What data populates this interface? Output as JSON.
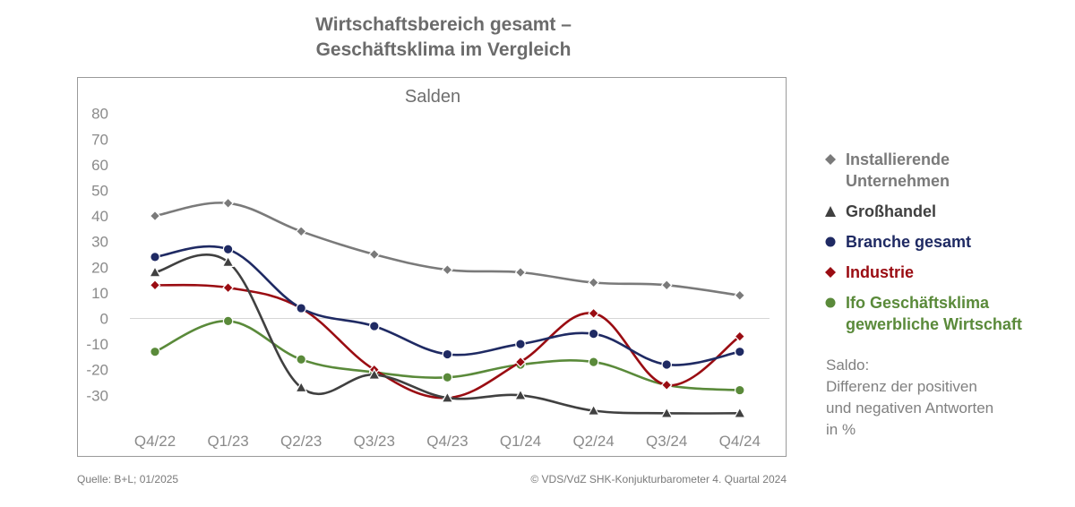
{
  "title_lines": [
    "Wirtschaftsbereich gesamt –",
    "Geschäftsklima im Vergleich"
  ],
  "legend": [
    {
      "label": "Installierende\nUnternehmen",
      "color": "#7a7a7a",
      "marker": "diamond"
    },
    {
      "label": "Großhandel",
      "color": "#404040",
      "marker": "triangle"
    },
    {
      "label": "Branche gesamt",
      "color": "#1f2a63",
      "marker": "circle"
    },
    {
      "label": "Industrie",
      "color": "#9a0c12",
      "marker": "diamond"
    },
    {
      "label": "Ifo Geschäftsklima\ngewerbliche Wirtschaft",
      "color": "#5a8a3a",
      "marker": "circle"
    }
  ],
  "note": "Saldo:\nDifferenz der positiven\nund negativen Antworten\nin %",
  "footer": {
    "source": "Quelle: B+L; 01/2025",
    "copyright": "© VDS/VdZ SHK-Konjukturbarometer 4. Quartal 2024"
  },
  "chart_data": {
    "type": "line",
    "title": "Wirtschaftsbereich gesamt – Geschäftsklima im Vergleich",
    "subtitle": "Salden",
    "categories": [
      "Q4/22",
      "Q1/23",
      "Q2/23",
      "Q3/23",
      "Q4/23",
      "Q1/24",
      "Q2/24",
      "Q3/24",
      "Q4/24"
    ],
    "y_ticks": [
      80,
      70,
      60,
      50,
      40,
      30,
      20,
      10,
      0,
      -10,
      -20,
      -30
    ],
    "ylim": [
      -40,
      80
    ],
    "grid": false,
    "legend_position": "right",
    "series": [
      {
        "name": "Installierende Unternehmen",
        "color": "#7a7a7a",
        "marker": "diamond",
        "values": [
          40,
          45,
          34,
          25,
          19,
          18,
          14,
          13,
          9
        ]
      },
      {
        "name": "Großhandel",
        "color": "#404040",
        "marker": "triangle",
        "values": [
          18,
          22,
          -27,
          -22,
          -31,
          -30,
          -36,
          -37,
          -37
        ]
      },
      {
        "name": "Branche gesamt",
        "color": "#1f2a63",
        "marker": "circle",
        "values": [
          24,
          27,
          4,
          -3,
          -14,
          -10,
          -6,
          -18,
          -13
        ]
      },
      {
        "name": "Industrie",
        "color": "#9a0c12",
        "marker": "diamond",
        "values": [
          13,
          12,
          4,
          -20,
          -31,
          -17,
          2,
          -26,
          -7
        ]
      },
      {
        "name": "Ifo Geschäftsklima gewerbliche Wirtschaft",
        "color": "#5a8a3a",
        "marker": "circle",
        "values": [
          -13,
          -1,
          -16,
          -21,
          -23,
          -18,
          -17,
          -26,
          -28
        ]
      }
    ]
  }
}
